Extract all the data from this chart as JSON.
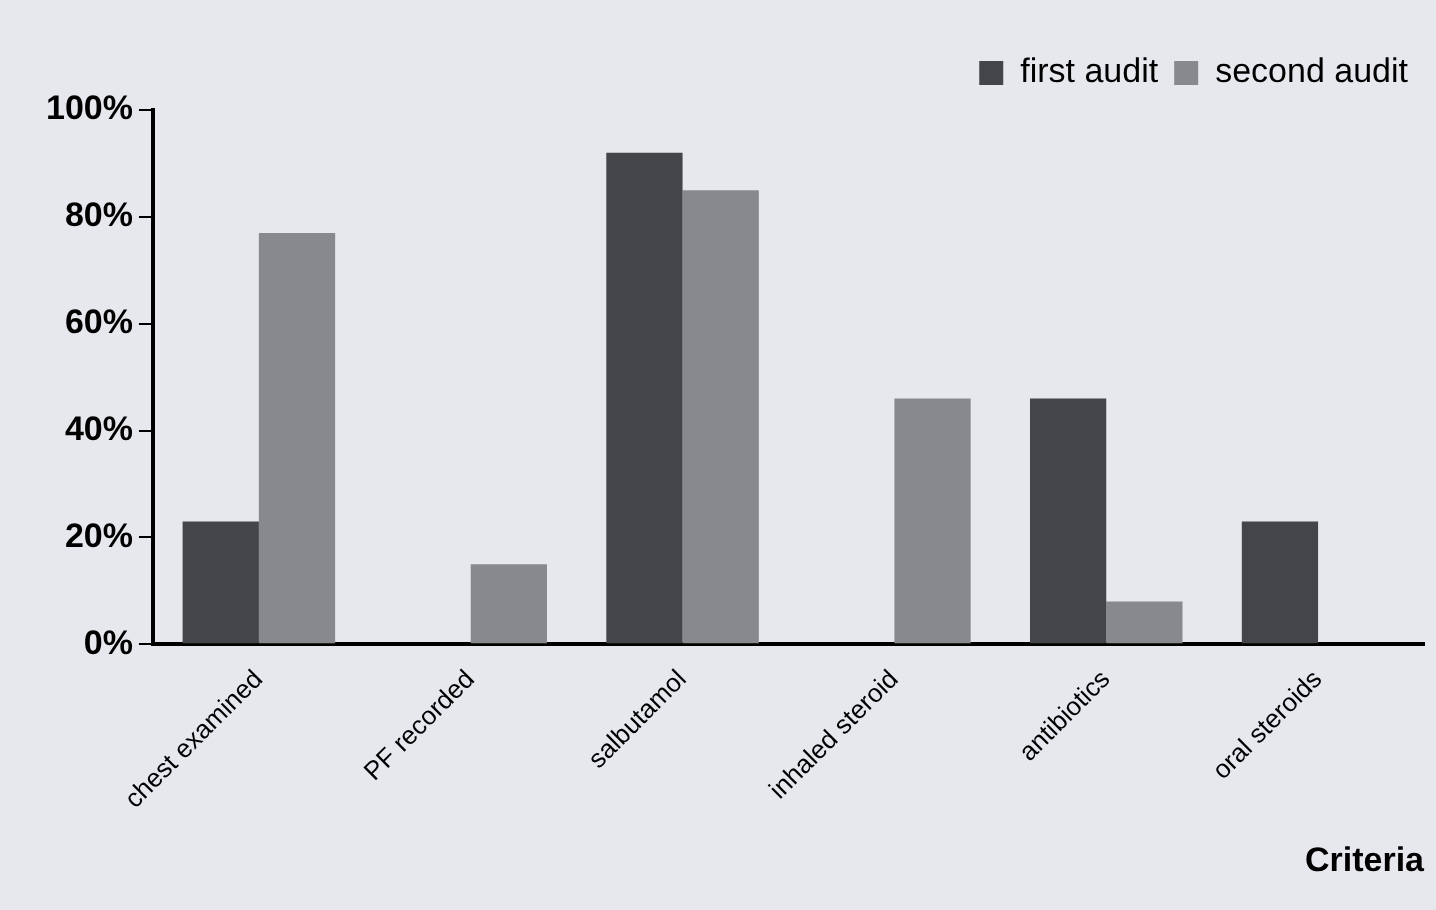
{
  "chart_data": {
    "type": "bar",
    "xlabel": "Criteria",
    "categories": [
      "chest examined",
      "PF recorded",
      "salbutamol",
      "inhaled steroid",
      "antibiotics",
      "oral steroids"
    ],
    "series": [
      {
        "name": "first audit",
        "color": "#444548",
        "values": [
          23,
          0,
          92,
          0,
          46,
          23
        ]
      },
      {
        "name": "second audit",
        "color": "#88898c",
        "values": [
          77,
          15,
          85,
          46,
          8,
          0
        ]
      }
    ],
    "ylim": [
      0,
      100
    ],
    "yticks": [
      {
        "value": 0,
        "label": "0%"
      },
      {
        "value": 20,
        "label": "20%"
      },
      {
        "value": 40,
        "label": "40%"
      },
      {
        "value": 60,
        "label": "60%"
      },
      {
        "value": 80,
        "label": "80%"
      },
      {
        "value": 100,
        "label": "100%"
      }
    ],
    "grid": false,
    "legend": "top right"
  }
}
